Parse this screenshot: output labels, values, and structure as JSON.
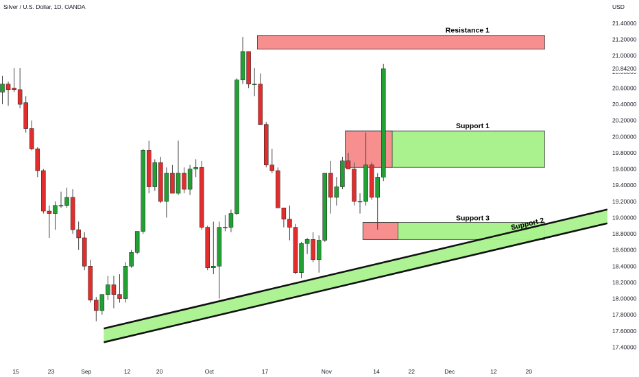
{
  "header": {
    "title": "Silver / U.S. Dollar, 1D, OANDA",
    "currency": "USD"
  },
  "colors": {
    "up": "#22a033",
    "down": "#e22d2d",
    "wick": "#444444",
    "resistance_fill": "#f88f8f",
    "support_fill": "#a9f28e",
    "box_stroke": "#3a3a3a",
    "trend_line": "#111111",
    "current_price_bg": "#ffffff"
  },
  "chart_data": {
    "type": "candlestick",
    "title": "Silver / U.S. Dollar, 1D, OANDA",
    "ylabel": "USD",
    "ylim": [
      17.3,
      21.6
    ],
    "y_ticks": [
      17.4,
      17.6,
      17.8,
      18.0,
      18.2,
      18.4,
      18.6,
      18.8,
      19.0,
      19.2,
      19.4,
      19.6,
      19.8,
      20.0,
      20.2,
      20.4,
      20.6,
      20.8,
      21.0,
      21.2,
      21.4
    ],
    "y_tick_labels": [
      "17.40000",
      "17.60000",
      "17.80000",
      "18.00000",
      "18.20000",
      "18.40000",
      "18.60000",
      "18.80000",
      "19.00000",
      "19.20000",
      "19.40000",
      "19.60000",
      "19.80000",
      "20.00000",
      "20.20000",
      "20.40000",
      "20.60000",
      "20.80000",
      "21.00000",
      "21.20000",
      "21.40000"
    ],
    "current_price": 20.842,
    "current_price_label": "20.84200",
    "x_ticks": [
      {
        "label": "15",
        "index": 2.3
      },
      {
        "label": "23",
        "index": 8.3
      },
      {
        "label": "Sep",
        "index": 14.3
      },
      {
        "label": "12",
        "index": 21.3
      },
      {
        "label": "20",
        "index": 26.8
      },
      {
        "label": "Oct",
        "index": 35.3
      },
      {
        "label": "17",
        "index": 44.8
      },
      {
        "label": "Nov",
        "index": 55.3
      },
      {
        "label": "14",
        "index": 63.8
      },
      {
        "label": "22",
        "index": 69.8
      },
      {
        "label": "Dec",
        "index": 76.3
      },
      {
        "label": "12",
        "index": 83.8
      },
      {
        "label": "20",
        "index": 89.8
      }
    ],
    "candles": [
      {
        "o": 20.55,
        "h": 20.75,
        "l": 20.4,
        "c": 20.65
      },
      {
        "o": 20.65,
        "h": 20.68,
        "l": 20.38,
        "c": 20.58
      },
      {
        "o": 20.6,
        "h": 20.85,
        "l": 20.55,
        "c": 20.58
      },
      {
        "o": 20.58,
        "h": 20.85,
        "l": 20.35,
        "c": 20.4
      },
      {
        "o": 20.42,
        "h": 20.5,
        "l": 20.05,
        "c": 20.1
      },
      {
        "o": 20.1,
        "h": 20.2,
        "l": 19.83,
        "c": 19.85
      },
      {
        "o": 19.85,
        "h": 19.87,
        "l": 19.5,
        "c": 19.58
      },
      {
        "o": 19.58,
        "h": 19.6,
        "l": 19.05,
        "c": 19.08
      },
      {
        "o": 19.08,
        "h": 19.15,
        "l": 18.75,
        "c": 19.05
      },
      {
        "o": 19.05,
        "h": 19.2,
        "l": 18.85,
        "c": 19.15
      },
      {
        "o": 19.15,
        "h": 19.32,
        "l": 19.12,
        "c": 19.15
      },
      {
        "o": 19.15,
        "h": 19.37,
        "l": 19.12,
        "c": 19.25
      },
      {
        "o": 19.25,
        "h": 19.35,
        "l": 18.8,
        "c": 18.85
      },
      {
        "o": 18.85,
        "h": 18.95,
        "l": 18.6,
        "c": 18.75
      },
      {
        "o": 18.75,
        "h": 18.82,
        "l": 18.35,
        "c": 18.4
      },
      {
        "o": 18.4,
        "h": 18.48,
        "l": 17.95,
        "c": 17.98
      },
      {
        "o": 17.98,
        "h": 18.02,
        "l": 17.72,
        "c": 17.85
      },
      {
        "o": 17.85,
        "h": 18.05,
        "l": 17.8,
        "c": 18.05
      },
      {
        "o": 18.05,
        "h": 18.28,
        "l": 17.98,
        "c": 18.17
      },
      {
        "o": 18.17,
        "h": 18.28,
        "l": 17.88,
        "c": 18.05
      },
      {
        "o": 18.05,
        "h": 18.3,
        "l": 17.95,
        "c": 18.0
      },
      {
        "o": 18.0,
        "h": 18.45,
        "l": 17.95,
        "c": 18.4
      },
      {
        "o": 18.4,
        "h": 18.6,
        "l": 18.38,
        "c": 18.57
      },
      {
        "o": 18.57,
        "h": 18.83,
        "l": 18.55,
        "c": 18.83
      },
      {
        "o": 18.83,
        "h": 19.85,
        "l": 18.8,
        "c": 19.83
      },
      {
        "o": 19.83,
        "h": 19.95,
        "l": 19.3,
        "c": 19.38
      },
      {
        "o": 19.38,
        "h": 19.72,
        "l": 19.33,
        "c": 19.68
      },
      {
        "o": 19.68,
        "h": 19.75,
        "l": 19.18,
        "c": 19.2
      },
      {
        "o": 19.2,
        "h": 19.62,
        "l": 19.0,
        "c": 19.55
      },
      {
        "o": 19.55,
        "h": 19.65,
        "l": 19.3,
        "c": 19.3
      },
      {
        "o": 19.3,
        "h": 19.95,
        "l": 19.28,
        "c": 19.55
      },
      {
        "o": 19.55,
        "h": 19.62,
        "l": 19.3,
        "c": 19.35
      },
      {
        "o": 19.35,
        "h": 19.65,
        "l": 19.28,
        "c": 19.6
      },
      {
        "o": 19.6,
        "h": 19.72,
        "l": 19.5,
        "c": 19.62
      },
      {
        "o": 19.62,
        "h": 19.7,
        "l": 18.85,
        "c": 18.88
      },
      {
        "o": 18.88,
        "h": 18.9,
        "l": 18.35,
        "c": 18.38
      },
      {
        "o": 18.38,
        "h": 18.95,
        "l": 18.3,
        "c": 18.4
      },
      {
        "o": 18.4,
        "h": 18.95,
        "l": 18.0,
        "c": 18.88
      },
      {
        "o": 18.88,
        "h": 19.03,
        "l": 18.83,
        "c": 18.88
      },
      {
        "o": 18.88,
        "h": 19.1,
        "l": 18.82,
        "c": 19.05
      },
      {
        "o": 19.05,
        "h": 20.72,
        "l": 19.03,
        "c": 20.7
      },
      {
        "o": 20.7,
        "h": 21.23,
        "l": 20.65,
        "c": 21.05
      },
      {
        "o": 21.05,
        "h": 21.05,
        "l": 20.6,
        "c": 20.65
      },
      {
        "o": 20.65,
        "h": 20.85,
        "l": 20.5,
        "c": 20.65
      },
      {
        "o": 20.65,
        "h": 20.78,
        "l": 20.15,
        "c": 20.15
      },
      {
        "o": 20.15,
        "h": 20.18,
        "l": 19.62,
        "c": 19.65
      },
      {
        "o": 19.65,
        "h": 19.85,
        "l": 19.55,
        "c": 19.58
      },
      {
        "o": 19.58,
        "h": 19.62,
        "l": 19.12,
        "c": 19.12
      },
      {
        "o": 19.12,
        "h": 19.12,
        "l": 18.88,
        "c": 18.98
      },
      {
        "o": 18.98,
        "h": 19.15,
        "l": 18.72,
        "c": 18.88
      },
      {
        "o": 18.88,
        "h": 18.92,
        "l": 18.3,
        "c": 18.32
      },
      {
        "o": 18.32,
        "h": 18.7,
        "l": 18.25,
        "c": 18.68
      },
      {
        "o": 18.68,
        "h": 18.75,
        "l": 18.55,
        "c": 18.73
      },
      {
        "o": 18.73,
        "h": 18.82,
        "l": 18.45,
        "c": 18.48
      },
      {
        "o": 18.48,
        "h": 18.78,
        "l": 18.32,
        "c": 18.72
      },
      {
        "o": 18.72,
        "h": 19.55,
        "l": 18.7,
        "c": 19.55
      },
      {
        "o": 19.55,
        "h": 19.7,
        "l": 19.05,
        "c": 19.25
      },
      {
        "o": 19.25,
        "h": 19.5,
        "l": 19.15,
        "c": 19.38
      },
      {
        "o": 19.38,
        "h": 19.75,
        "l": 19.35,
        "c": 19.7
      },
      {
        "o": 19.7,
        "h": 19.8,
        "l": 19.6,
        "c": 19.6
      },
      {
        "o": 19.6,
        "h": 19.68,
        "l": 19.15,
        "c": 19.2
      },
      {
        "o": 19.2,
        "h": 19.3,
        "l": 19.05,
        "c": 19.2
      },
      {
        "o": 19.2,
        "h": 20.05,
        "l": 19.15,
        "c": 19.65
      },
      {
        "o": 19.65,
        "h": 19.68,
        "l": 19.22,
        "c": 19.25
      },
      {
        "o": 19.25,
        "h": 19.55,
        "l": 18.85,
        "c": 19.5
      },
      {
        "o": 19.5,
        "h": 20.9,
        "l": 19.45,
        "c": 20.84
      }
    ],
    "zones": [
      {
        "label": "Resistance 1",
        "kind": "resistance",
        "x_from": 43.5,
        "x_to": 92.5,
        "y_from": 21.08,
        "y_to": 21.25
      },
      {
        "label": "Support 1",
        "kind": "support",
        "x_from": 58.5,
        "x_to": 92.5,
        "y_from": 19.62,
        "y_to": 20.07
      },
      {
        "label": "",
        "kind": "resistance",
        "x_from": 58.5,
        "x_to": 66.5,
        "y_from": 19.62,
        "y_to": 20.07
      },
      {
        "label": "Support 3",
        "kind": "support",
        "x_from": 61.5,
        "x_to": 92.5,
        "y_from": 18.73,
        "y_to": 18.94
      },
      {
        "label": "",
        "kind": "resistance",
        "x_from": 61.5,
        "x_to": 67.5,
        "y_from": 18.73,
        "y_to": 18.94
      }
    ],
    "trend_channel": {
      "label": "Support 2",
      "upper": {
        "x1": 17.3,
        "y1": 17.63,
        "x2": 103.2,
        "y2": 19.1
      },
      "lower": {
        "x1": 17.3,
        "y1": 17.46,
        "x2": 103.2,
        "y2": 18.93
      }
    }
  }
}
